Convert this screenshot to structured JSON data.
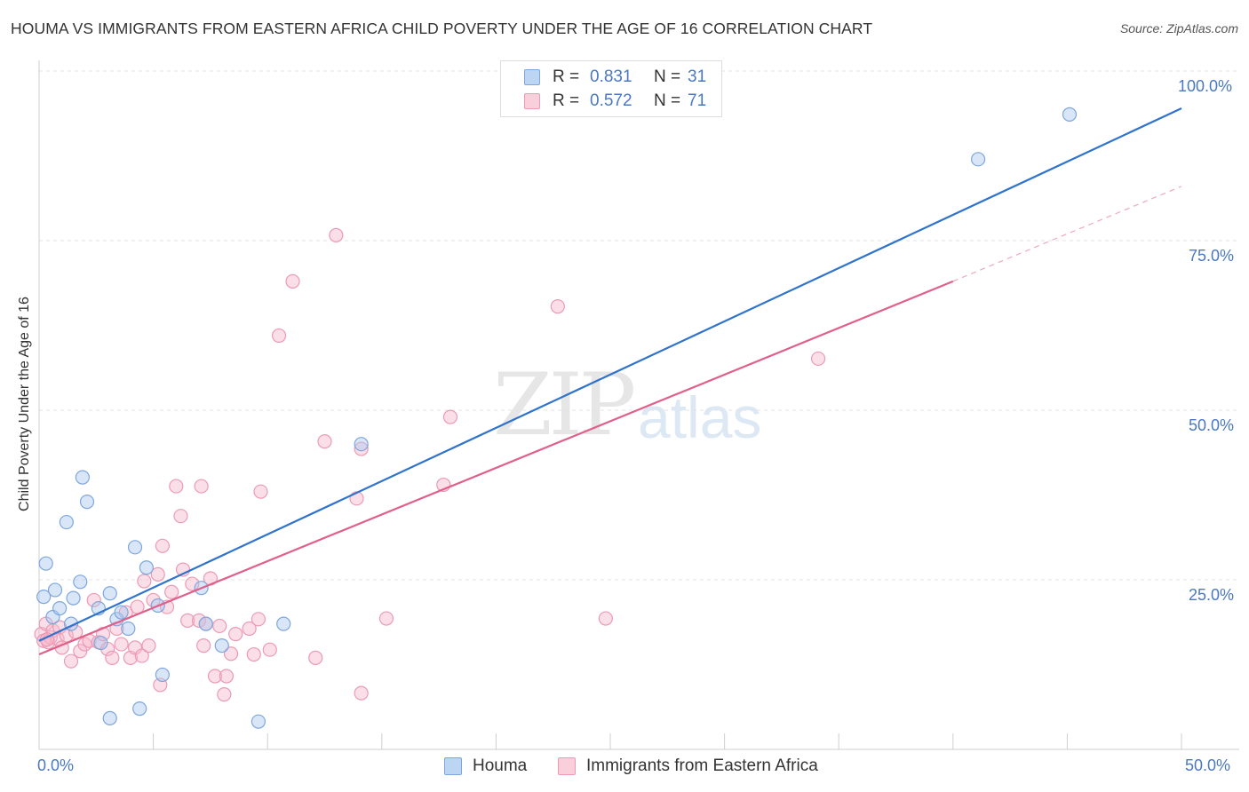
{
  "header": {
    "title": "HOUMA VS IMMIGRANTS FROM EASTERN AFRICA CHILD POVERTY UNDER THE AGE OF 16 CORRELATION CHART",
    "source": "Source: ZipAtlas.com"
  },
  "watermark": {
    "zip": "ZIP",
    "atlas": "atlas"
  },
  "legend_top": {
    "rows": [
      {
        "r_label": "R =",
        "r_value": "0.831",
        "n_label": "N =",
        "n_value": "31"
      },
      {
        "r_label": "R =",
        "r_value": "0.572",
        "n_label": "N =",
        "n_value": "71"
      }
    ]
  },
  "legend_bottom": {
    "items": [
      {
        "label": "Houma"
      },
      {
        "label": "Immigrants from Eastern Africa"
      }
    ]
  },
  "axis_labels": {
    "y": "Child Poverty Under the Age of 16",
    "x_min": "0.0%",
    "x_max": "50.0%",
    "y_ticks": [
      "100.0%",
      "75.0%",
      "50.0%",
      "25.0%"
    ]
  },
  "chart_data": {
    "type": "scatter",
    "title": "HOUMA VS IMMIGRANTS FROM EASTERN AFRICA CHILD POVERTY UNDER THE AGE OF 16 CORRELATION CHART",
    "xlabel": "",
    "ylabel": "Child Poverty Under the Age of 16",
    "xlim": [
      0,
      50
    ],
    "ylim": [
      0,
      100
    ],
    "y_ticks": [
      25,
      50,
      75,
      100
    ],
    "grid": true,
    "legend_position": "top-center",
    "colors": {
      "houma": "#a8c8ef",
      "houma_line": "#2f73cc",
      "africa": "#f6b8cc",
      "africa_line": "#e0608a"
    },
    "series": [
      {
        "name": "Houma",
        "points": [
          [
            0.2,
            22.5
          ],
          [
            0.3,
            27.4
          ],
          [
            0.6,
            19.5
          ],
          [
            0.7,
            23.5
          ],
          [
            0.9,
            20.8
          ],
          [
            1.2,
            33.5
          ],
          [
            1.4,
            18.5
          ],
          [
            1.5,
            22.3
          ],
          [
            1.8,
            24.7
          ],
          [
            1.9,
            40.1
          ],
          [
            2.1,
            36.5
          ],
          [
            2.6,
            20.8
          ],
          [
            2.7,
            15.7
          ],
          [
            3.1,
            23.0
          ],
          [
            3.1,
            4.6
          ],
          [
            3.4,
            19.2
          ],
          [
            3.6,
            20.2
          ],
          [
            3.9,
            17.8
          ],
          [
            4.2,
            29.8
          ],
          [
            4.4,
            6.0
          ],
          [
            4.7,
            26.8
          ],
          [
            5.2,
            21.2
          ],
          [
            5.4,
            11.0
          ],
          [
            7.1,
            23.8
          ],
          [
            7.3,
            18.5
          ],
          [
            8.0,
            15.3
          ],
          [
            9.6,
            4.1
          ],
          [
            10.7,
            18.5
          ],
          [
            14.1,
            45.0
          ],
          [
            41.1,
            87.0
          ],
          [
            45.1,
            93.6
          ]
        ],
        "trend": {
          "x": [
            0,
            50
          ],
          "y": [
            16.0,
            94.5
          ]
        }
      },
      {
        "name": "Immigrants from Eastern Africa",
        "points": [
          [
            0.1,
            17.0
          ],
          [
            0.2,
            16.0
          ],
          [
            0.3,
            18.5
          ],
          [
            0.4,
            15.8
          ],
          [
            0.5,
            16.5
          ],
          [
            0.6,
            17.5
          ],
          [
            0.8,
            16.3
          ],
          [
            0.9,
            18.0
          ],
          [
            1.0,
            15.0
          ],
          [
            1.2,
            16.8
          ],
          [
            1.4,
            13.0
          ],
          [
            1.6,
            17.3
          ],
          [
            1.8,
            14.5
          ],
          [
            2.0,
            15.5
          ],
          [
            2.2,
            16.0
          ],
          [
            2.4,
            22.0
          ],
          [
            2.6,
            15.8
          ],
          [
            2.8,
            17.0
          ],
          [
            3.0,
            14.8
          ],
          [
            3.2,
            13.5
          ],
          [
            3.4,
            17.8
          ],
          [
            3.6,
            15.5
          ],
          [
            3.8,
            20.2
          ],
          [
            4.0,
            13.5
          ],
          [
            4.2,
            15.0
          ],
          [
            4.3,
            21.0
          ],
          [
            4.5,
            13.8
          ],
          [
            4.6,
            24.8
          ],
          [
            4.8,
            15.3
          ],
          [
            5.0,
            22.0
          ],
          [
            5.2,
            25.8
          ],
          [
            5.3,
            9.5
          ],
          [
            5.4,
            30.0
          ],
          [
            5.6,
            21.0
          ],
          [
            5.8,
            23.2
          ],
          [
            6.0,
            38.8
          ],
          [
            6.2,
            34.4
          ],
          [
            6.3,
            26.5
          ],
          [
            6.5,
            19.0
          ],
          [
            6.7,
            24.4
          ],
          [
            7.0,
            19.0
          ],
          [
            7.1,
            38.8
          ],
          [
            7.2,
            15.3
          ],
          [
            7.3,
            18.5
          ],
          [
            7.5,
            25.2
          ],
          [
            7.7,
            10.8
          ],
          [
            7.9,
            18.2
          ],
          [
            8.1,
            8.1
          ],
          [
            8.2,
            10.8
          ],
          [
            8.4,
            14.1
          ],
          [
            8.6,
            17.0
          ],
          [
            9.2,
            17.8
          ],
          [
            9.4,
            14.0
          ],
          [
            9.6,
            19.2
          ],
          [
            9.7,
            38.0
          ],
          [
            10.1,
            14.7
          ],
          [
            10.5,
            61.0
          ],
          [
            11.1,
            69.0
          ],
          [
            12.1,
            13.5
          ],
          [
            12.5,
            45.4
          ],
          [
            13.0,
            75.8
          ],
          [
            13.9,
            37.0
          ],
          [
            14.1,
            44.3
          ],
          [
            14.1,
            8.3
          ],
          [
            15.2,
            19.3
          ],
          [
            17.7,
            39.0
          ],
          [
            18.0,
            49.0
          ],
          [
            22.7,
            65.3
          ],
          [
            24.8,
            19.3
          ],
          [
            34.1,
            57.6
          ],
          [
            0.35,
            16.2
          ]
        ],
        "trend": {
          "x": [
            0,
            40
          ],
          "y": [
            14.0,
            69.0
          ]
        },
        "trend_extension": {
          "x": [
            40,
            50
          ],
          "y": [
            69.0,
            83.0
          ]
        }
      }
    ]
  }
}
